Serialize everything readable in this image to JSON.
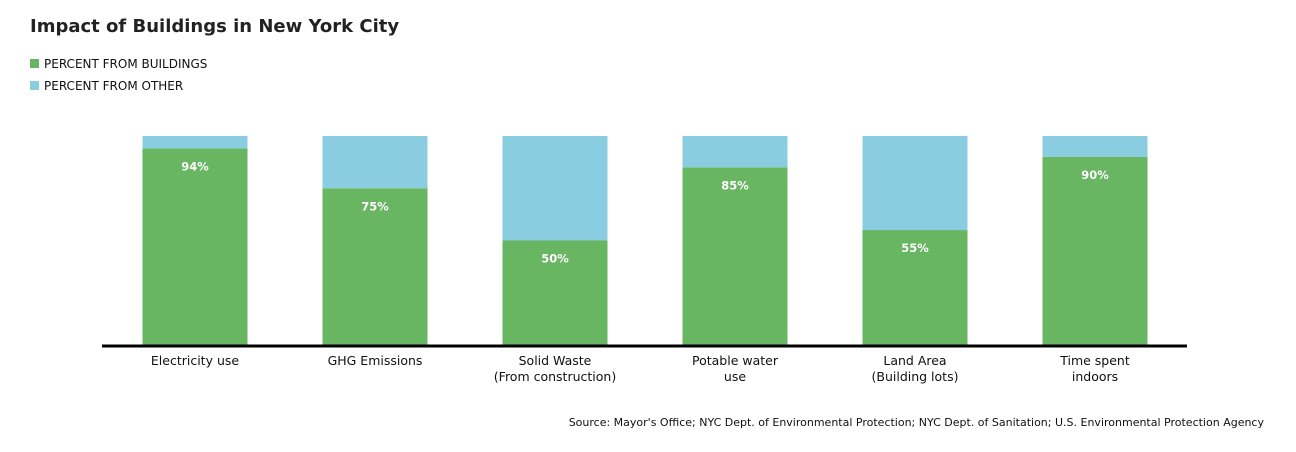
{
  "chart_data": {
    "type": "stacked_bar",
    "title": "Impact of Buildings in New York City",
    "categories": [
      "Electricity use",
      "GHG Emissions",
      "Solid Waste\n(From construction)",
      "Potable water\nuse",
      "Land Area\n(Building lots)",
      "Time spent\nindoors"
    ],
    "series": [
      {
        "name": "PERCENT FROM BUILDINGS",
        "color": "#68b562",
        "values": [
          94,
          75,
          50,
          85,
          55,
          90
        ],
        "value_labels": [
          "94%",
          "75%",
          "50%",
          "85%",
          "55%",
          "90%"
        ]
      },
      {
        "name": "PERCENT FROM OTHER",
        "color": "#8bcde0",
        "values": [
          6,
          25,
          50,
          15,
          45,
          10
        ]
      }
    ],
    "ylim": [
      0,
      100
    ],
    "source": "Source: Mayor's Office; NYC Dept. of Environmental Protection; NYC Dept. of Sanitation; U.S. Environmental Protection Agency"
  }
}
